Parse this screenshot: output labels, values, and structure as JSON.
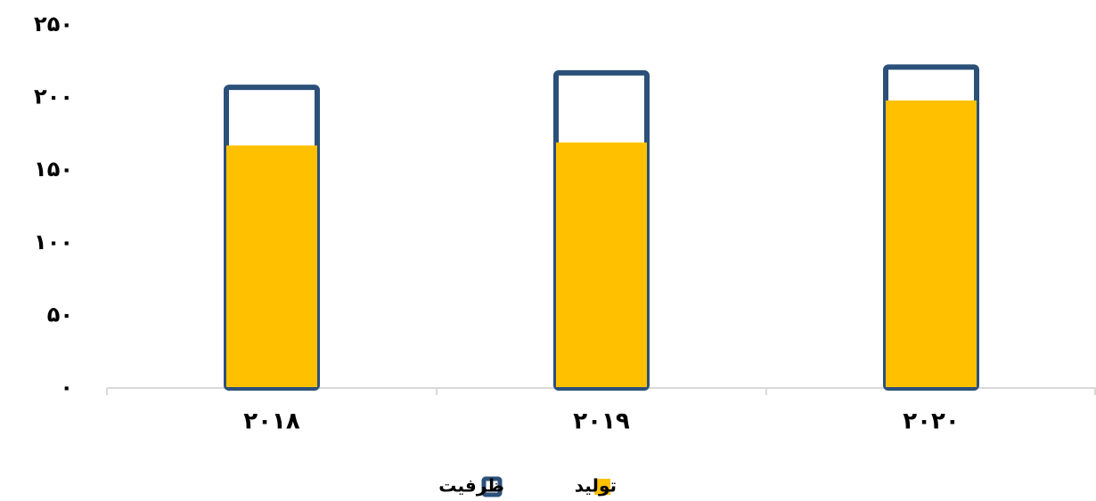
{
  "chart_data": {
    "type": "bar",
    "categories": [
      "۲۰۱۸",
      "۲۰۱۹",
      "۲۰۲۰"
    ],
    "series": [
      {
        "name": "ظرفیت",
        "color": "#2b5079",
        "values": [
          207,
          217,
          221
        ]
      },
      {
        "name": "تولید",
        "color": "#ffc000",
        "values": [
          167,
          169,
          198
        ]
      }
    ],
    "ylim": [
      0,
      250
    ],
    "yticks": [
      {
        "value": 0,
        "label": "۰"
      },
      {
        "value": 50,
        "label": "۵۰"
      },
      {
        "value": 100,
        "label": "۱۰۰"
      },
      {
        "value": 150,
        "label": "۱۵۰"
      },
      {
        "value": 200,
        "label": "۲۰۰"
      },
      {
        "value": 250,
        "label": "۲۵۰"
      }
    ],
    "grid": false,
    "legend": "bottom"
  }
}
